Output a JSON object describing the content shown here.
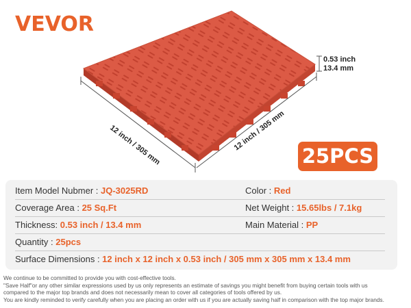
{
  "brand": "VEVOR",
  "dimensions": {
    "thickness_inch": "0.53 inch",
    "thickness_mm": "13.4 mm",
    "left_edge": "12 inch / 305 mm",
    "right_edge": "12 inch / 305 mm"
  },
  "badge": "25PCS",
  "colors": {
    "accent": "#e8622a",
    "tile": "#d9553f"
  },
  "specs": [
    [
      {
        "label": "Item Model Nubmer : ",
        "value": "JQ-3025RD"
      },
      {
        "label": "Color : ",
        "value": "Red"
      }
    ],
    [
      {
        "label": "Coverage Area : ",
        "value": "25 Sq.Ft"
      },
      {
        "label": "Net Weight : ",
        "value": "15.65lbs / 7.1kg"
      }
    ],
    [
      {
        "label": "Thickness: ",
        "value": "0.53 inch / 13.4 mm"
      },
      {
        "label": "Main Material : ",
        "value": "PP"
      }
    ],
    [
      {
        "label": "Quantity : ",
        "value": "25pcs"
      }
    ],
    [
      {
        "label": "Surface Dimensions : ",
        "value": "12 inch x 12 inch x 0.53 inch / 305 mm x 305 mm x 13.4 mm"
      }
    ]
  ],
  "disclaimer": [
    "We continue to be committed to provide you with cost-effective tools.",
    "\"Save Half\"or any other similar expressions used by us only represents an estimate of savings you might benefit from buying certain tools with us",
    "compared to the major top brands and does not necessarily mean to cover all categories of tools offered by us.",
    "You are kindly reminded to verify carefully when you are placing an order with us if you are actually saving half in comparison with the top major brands."
  ]
}
